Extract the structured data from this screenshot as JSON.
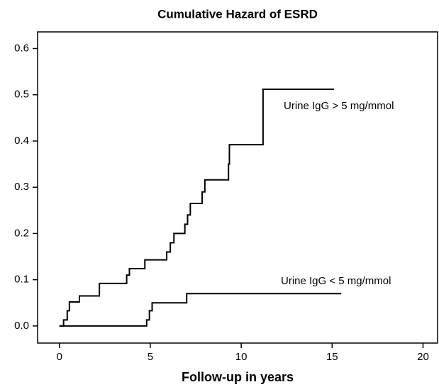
{
  "chart_data": {
    "type": "line",
    "steps": "post",
    "color": "#000000",
    "title": "Cumulative Hazard of ESRD",
    "x_label": "Follow-up in years",
    "xlim": [
      -1.2,
      20.8
    ],
    "ylim": [
      -0.037,
      0.636
    ],
    "xticks": [
      0,
      5,
      10,
      15,
      20
    ],
    "yticks": [
      {
        "value": 0,
        "label": "0.0"
      },
      0.1,
      0.2,
      0.3,
      0.4,
      0.5,
      0.6
    ],
    "series": [
      {
        "name": "Urine IgG > 5 mg/mmol",
        "color": "#000000",
        "x": [
          0,
          0.23,
          0.43,
          0.55,
          1.1,
          2.2,
          3.7,
          3.85,
          4.7,
          5.9,
          6.1,
          6.3,
          6.9,
          7.05,
          7.2,
          7.85,
          8.0,
          9.3,
          9.35,
          11.2,
          15.1
        ],
        "values": [
          0,
          0.013,
          0.033,
          0.052,
          0.065,
          0.092,
          0.11,
          0.124,
          0.143,
          0.16,
          0.18,
          0.2,
          0.22,
          0.24,
          0.265,
          0.29,
          0.316,
          0.35,
          0.392,
          0.512,
          0.512
        ]
      },
      {
        "name": "Urine IgG < 5 mg/mmol",
        "color": "#000000",
        "x": [
          0,
          4.8,
          4.95,
          5.1,
          7.0,
          15.5
        ],
        "values": [
          0,
          0.013,
          0.033,
          0.05,
          0.07,
          0.07
        ]
      }
    ]
  }
}
